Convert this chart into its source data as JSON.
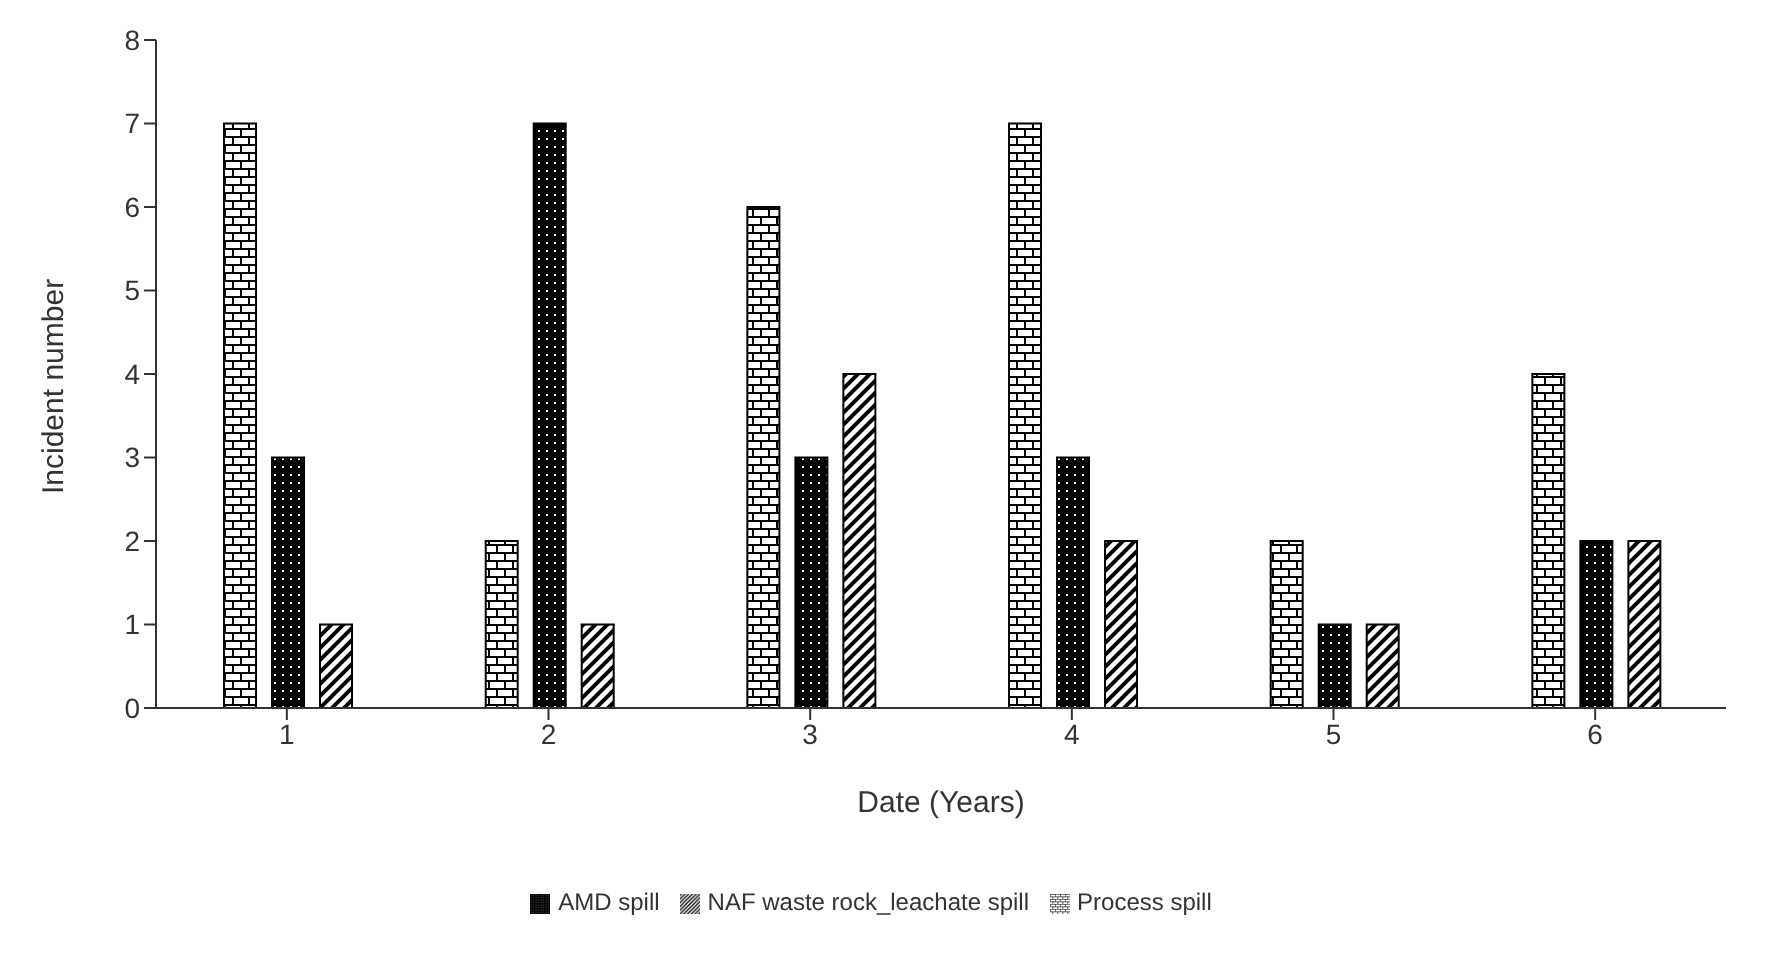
{
  "chart_data": {
    "type": "bar",
    "xlabel": "Date (Years)",
    "ylabel": "Incident number",
    "categories": [
      "1",
      "2",
      "3",
      "4",
      "5",
      "6"
    ],
    "series": [
      {
        "name": "Process spill",
        "color": "#000000",
        "values": [
          7,
          2,
          6,
          7,
          2,
          4
        ]
      },
      {
        "name": "AMD spill",
        "color": "#000000",
        "values": [
          3,
          7,
          3,
          3,
          1,
          2
        ]
      },
      {
        "name": "NAF  waste rock_leachate spill",
        "color": "#000000",
        "values": [
          1,
          1,
          4,
          2,
          1,
          2
        ]
      }
    ],
    "ylim": [
      0,
      8
    ],
    "yticks": [
      0,
      1,
      2,
      3,
      4,
      5,
      6,
      7,
      8
    ],
    "grid": false,
    "legend": "bottom"
  }
}
